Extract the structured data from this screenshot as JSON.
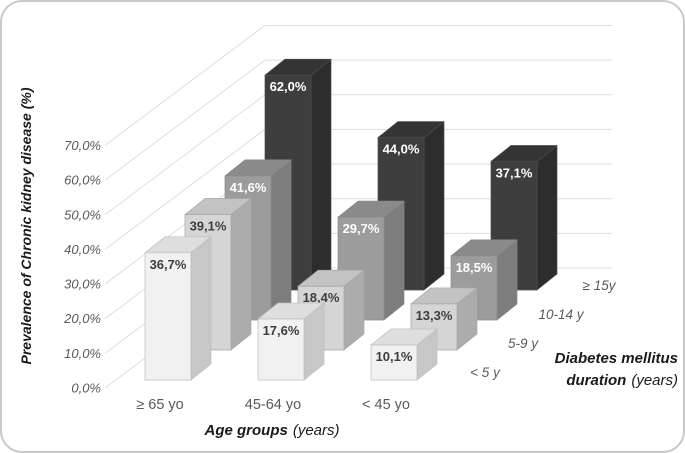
{
  "chart_data": {
    "type": "bar",
    "variant": "3d-oblique",
    "title": "",
    "ylabel": "Prevalence of Chronic kidney disease (%)",
    "xlabel_main": "Age groups",
    "xlabel_unit": "(years)",
    "depth_title_line1": "Diabetes mellitus",
    "depth_title_line2_main": "duration",
    "depth_title_line2_unit": "(years)",
    "categories": [
      "≥ 65 yo",
      "45-64 yo",
      "< 45 yo"
    ],
    "depth_categories": [
      "< 5 y",
      "5-9 y",
      "10-14 y",
      "≥ 15y"
    ],
    "y_ticks": [
      "0,0%",
      "10,0%",
      "20,0%",
      "30,0%",
      "40,0%",
      "50,0%",
      "60,0%",
      "70,0%"
    ],
    "ylim": [
      0,
      70
    ],
    "grid": true,
    "grid_color": "#dedede",
    "legend_position": "none",
    "series": [
      {
        "name": "< 5 y",
        "values": [
          36.7,
          17.6,
          10.1
        ],
        "labels": [
          "36,7%",
          "17,6%",
          "10,1%"
        ],
        "front": "#f1f1f1",
        "top": "#dedede",
        "side": "#c7c7c7",
        "edge": "#bdbdbd",
        "label_color": "#3d3d3d"
      },
      {
        "name": "5-9 y",
        "values": [
          39.1,
          18.4,
          13.3
        ],
        "labels": [
          "39,1%",
          "18,4%",
          "13,3%"
        ],
        "front": "#d5d5d5",
        "top": "#c3c3c3",
        "side": "#acacac",
        "edge": "#a5a5a5",
        "label_color": "#3d3d3d"
      },
      {
        "name": "10-14 y",
        "values": [
          41.6,
          29.7,
          18.5
        ],
        "labels": [
          "41,6%",
          "29,7%",
          "18,5%"
        ],
        "front": "#9c9c9c",
        "top": "#8a8a8a",
        "side": "#7d7d7d",
        "edge": "#8a8a8a",
        "label_color": "#ffffff"
      },
      {
        "name": "≥ 15y",
        "values": [
          62.0,
          44.0,
          37.1
        ],
        "labels": [
          "62,0%",
          "44,0%",
          "37,1%"
        ],
        "front": "#3e3e3e",
        "top": "#343434",
        "side": "#2d2d2d",
        "edge": "#4d4d4d",
        "label_color": "#ffffff"
      }
    ],
    "card_border_color": "#c9c9c9",
    "background_color": "#ffffff"
  }
}
